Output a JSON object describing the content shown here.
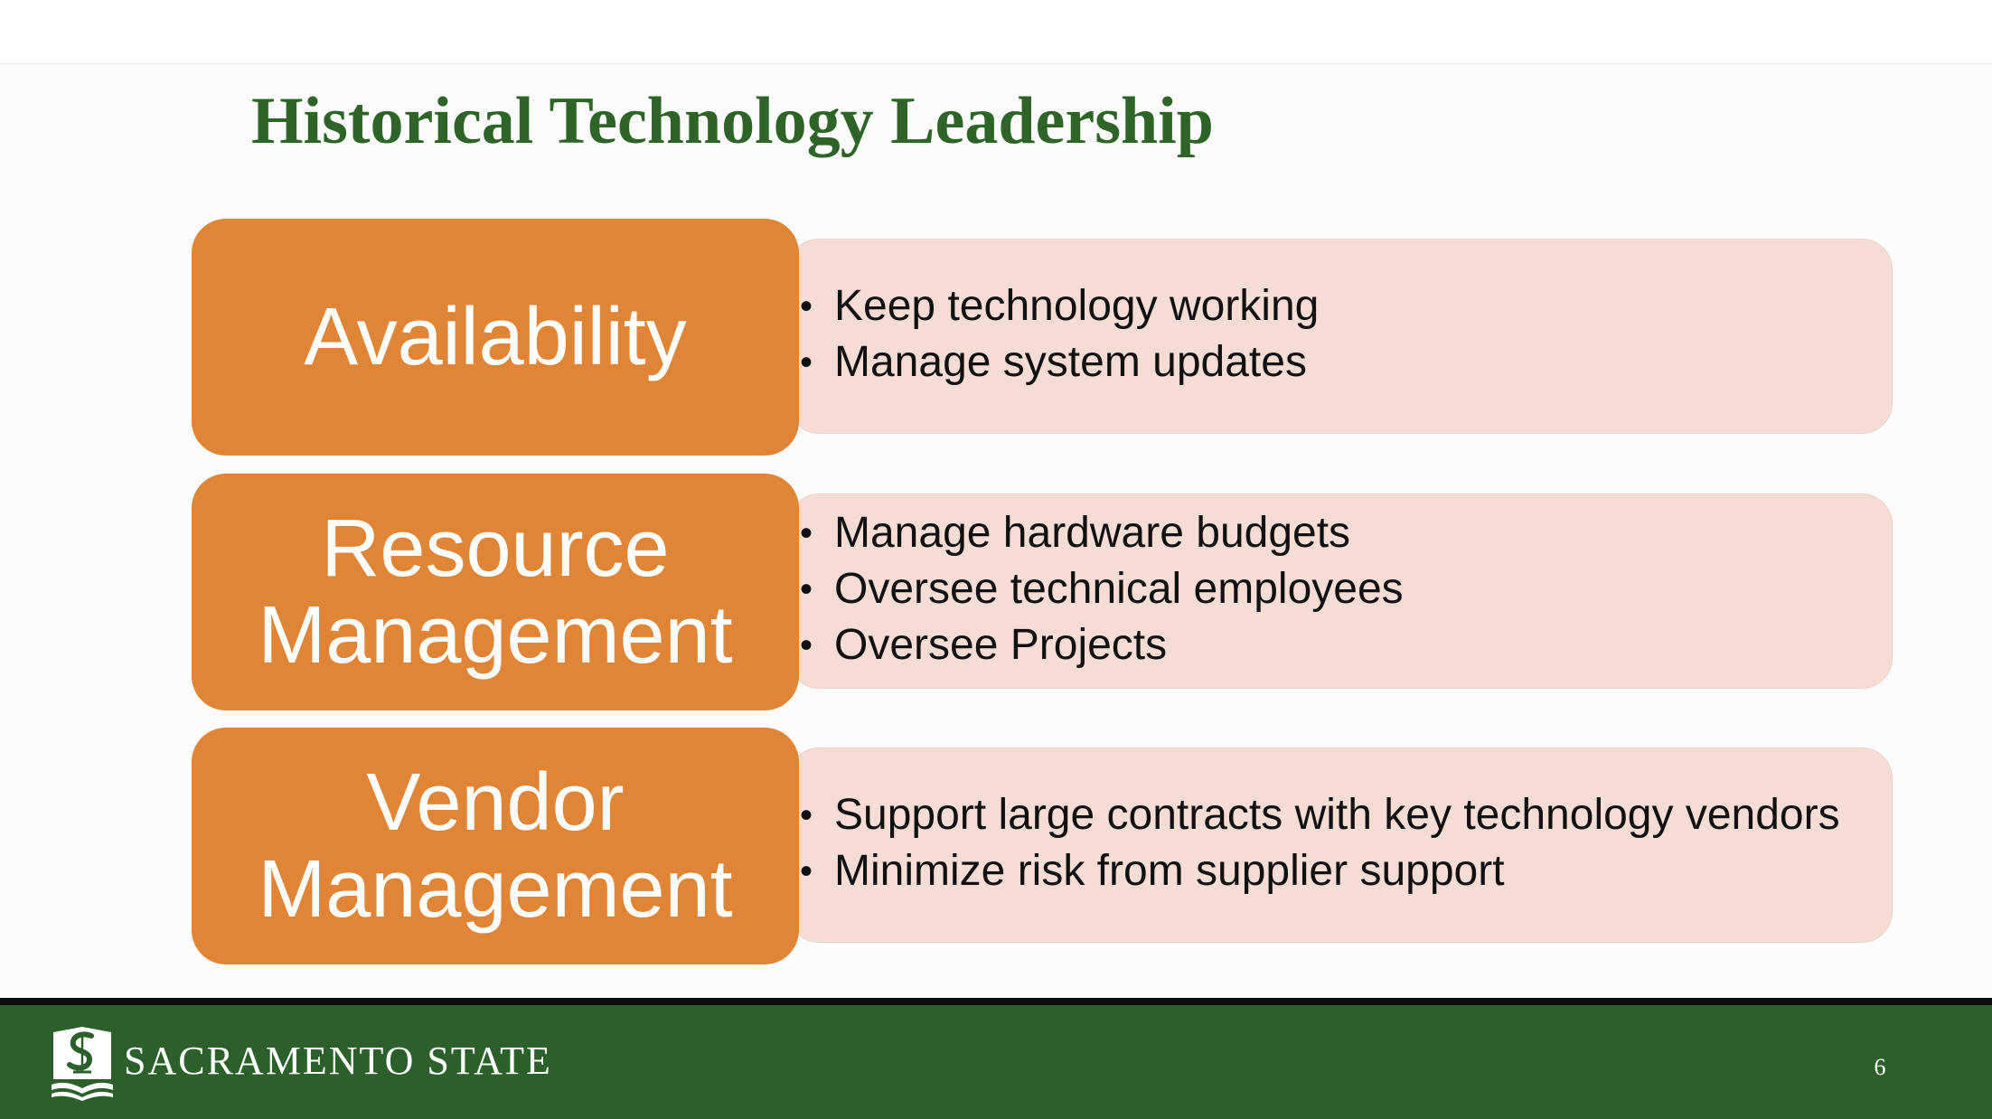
{
  "slide": {
    "title": "Historical Technology Leadership",
    "rows": [
      {
        "category": "Availability",
        "points": [
          "Keep technology working",
          "Manage system updates"
        ]
      },
      {
        "category": "Resource Management",
        "points": [
          "Manage hardware budgets",
          "Oversee technical employees",
          "Oversee Projects"
        ]
      },
      {
        "category": "Vendor Management",
        "points": [
          "Support large contracts with key technology vendors",
          "Minimize risk from supplier support"
        ]
      }
    ]
  },
  "footer": {
    "brand": "SACRAMENTO STATE",
    "page_number": "6"
  },
  "colors": {
    "title_green": "#2e6428",
    "category_orange": "#e08535",
    "detail_pink": "#f5dcd5",
    "footer_green": "#2b602b"
  },
  "icons": {
    "logo": "sacramento-state-logo-icon",
    "bullet": "bullet-dot"
  }
}
